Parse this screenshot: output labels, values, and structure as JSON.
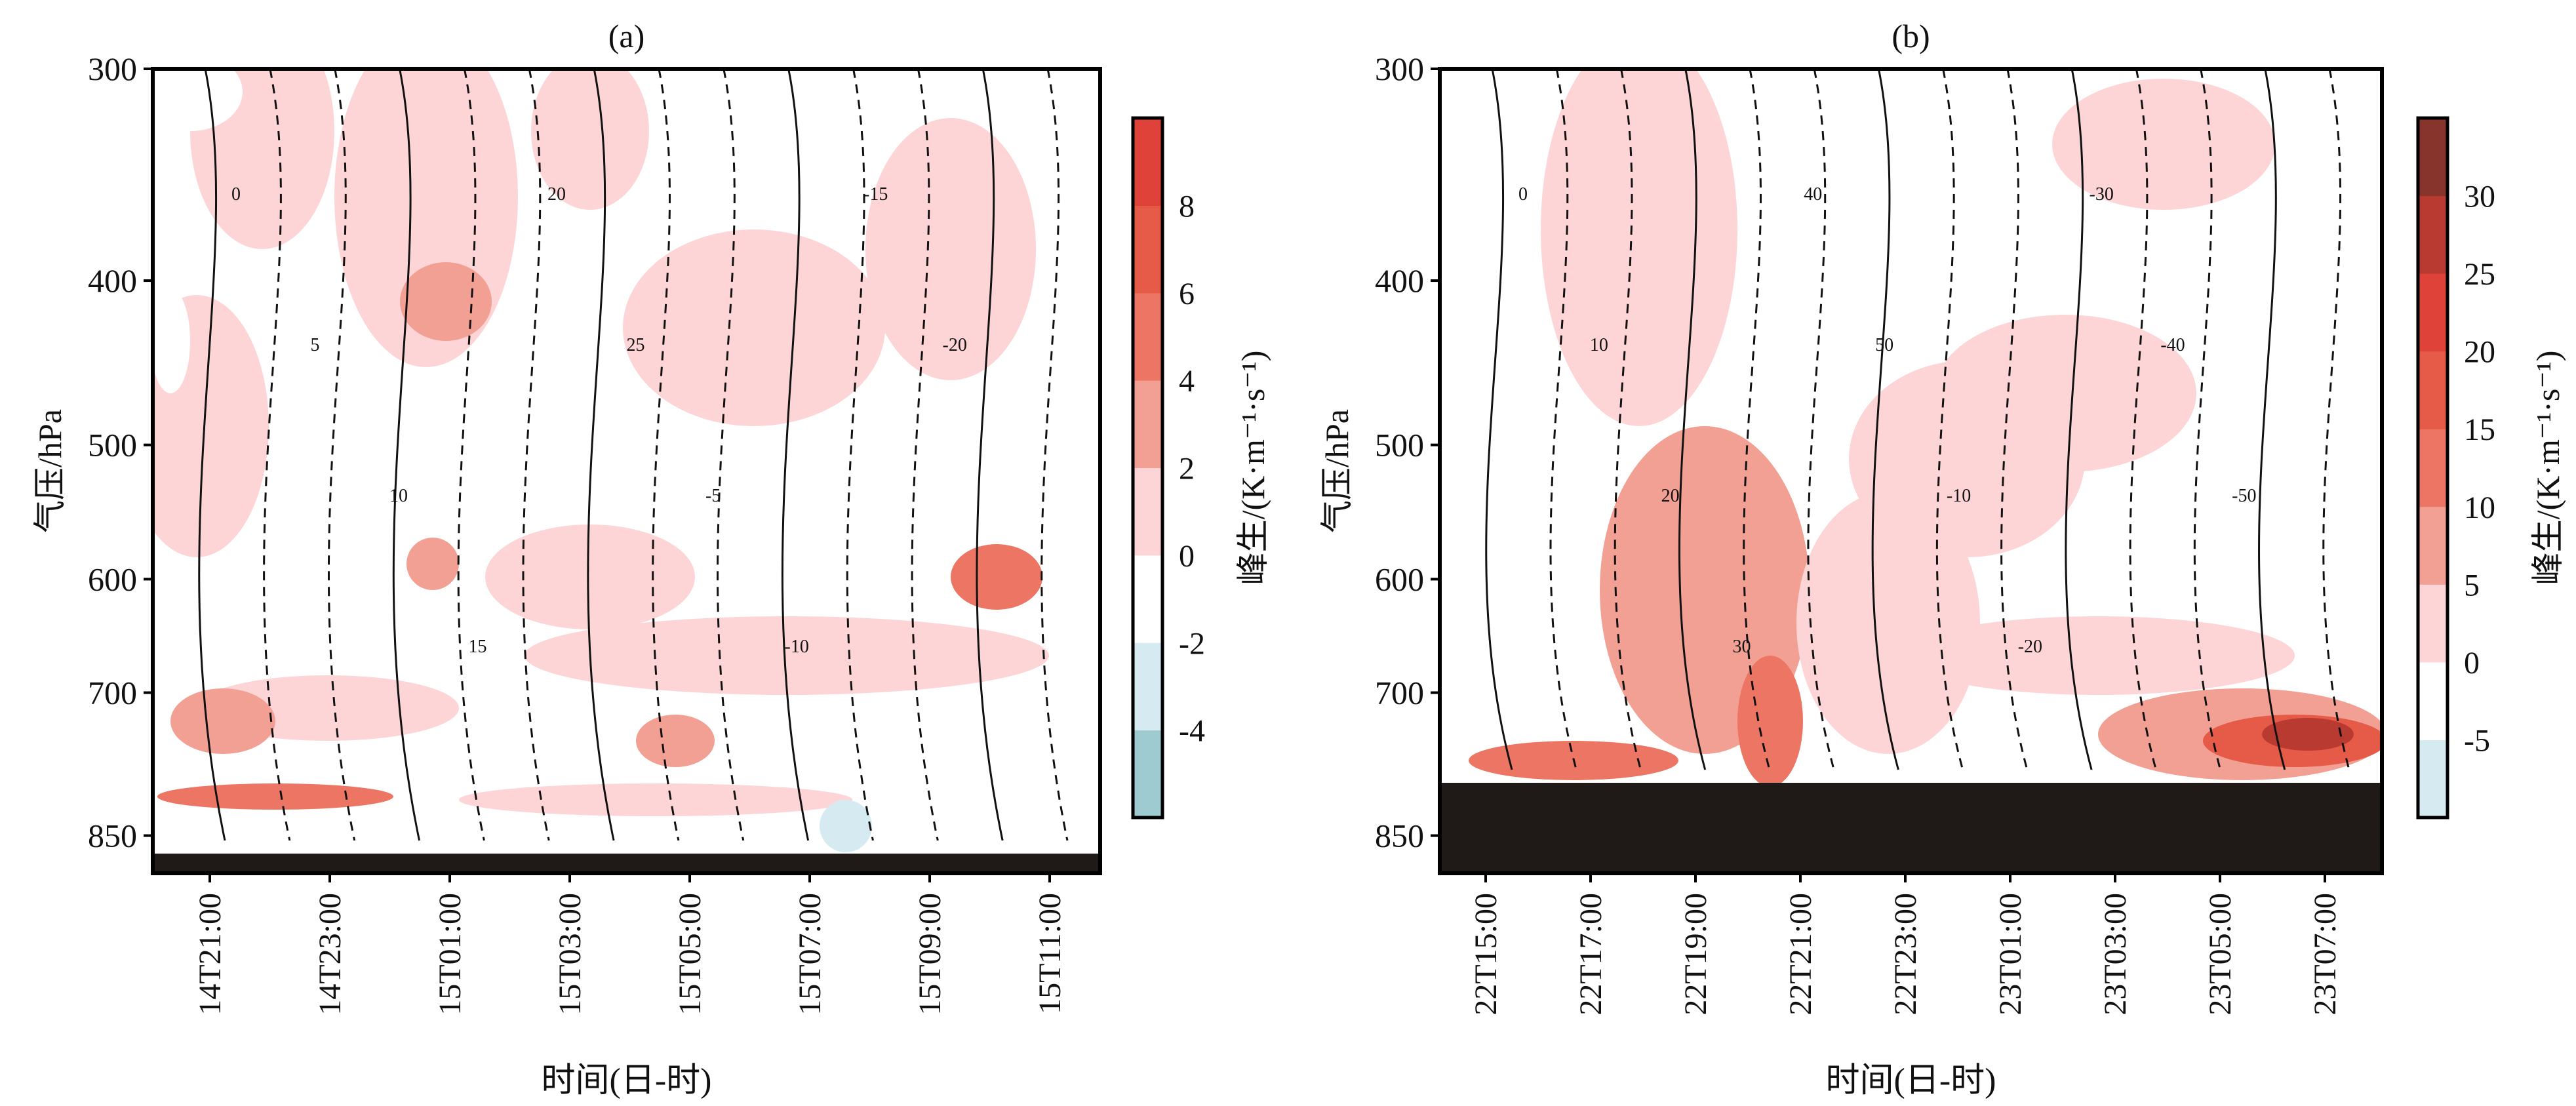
{
  "chart_data": [
    {
      "type": "heatmap",
      "title": "(a)",
      "xlabel": "时间(日-时)",
      "ylabel": "气压/hPa",
      "y_scale": "log",
      "ylim": [
        895,
        300
      ],
      "yticks": [
        300,
        400,
        500,
        600,
        700,
        850
      ],
      "xticks": [
        "14T21:00",
        "14T23:00",
        "15T01:00",
        "15T03:00",
        "15T05:00",
        "15T07:00",
        "15T09:00",
        "15T11:00"
      ],
      "colorbar": {
        "label": "峰生/(K·m⁻¹·s⁻¹)",
        "levels": [
          -6,
          -4,
          -2,
          0,
          2,
          4,
          6,
          8,
          10
        ],
        "ticks": [
          "8",
          "6",
          "4",
          "2",
          "0",
          "-2",
          "-4"
        ],
        "colors": [
          "#9dcbd0",
          "#d5ebf1",
          "#ffffff",
          "#fdd5d7",
          "#f2a093",
          "#ec7563",
          "#e65a48",
          "#de4238"
        ]
      },
      "contour_labels": [
        "0",
        "5",
        "10",
        "15",
        "20",
        "25",
        "-5",
        "-10",
        "-15",
        "-20"
      ]
    },
    {
      "type": "heatmap",
      "title": "(b)",
      "xlabel": "时间(日-时)",
      "ylabel": "气压/hPa",
      "y_scale": "log",
      "ylim": [
        895,
        300
      ],
      "yticks": [
        300,
        400,
        500,
        600,
        700,
        850
      ],
      "xticks": [
        "22T15:00",
        "22T17:00",
        "22T19:00",
        "22T21:00",
        "22T23:00",
        "23T01:00",
        "23T03:00",
        "23T05:00",
        "23T07:00"
      ],
      "colorbar": {
        "label": "峰生/(K·m⁻¹·s⁻¹)",
        "levels": [
          -10,
          -5,
          0,
          5,
          10,
          15,
          20,
          25,
          30,
          35
        ],
        "ticks": [
          "30",
          "25",
          "20",
          "15",
          "10",
          "5",
          "0",
          "-5"
        ],
        "colors": [
          "#d5ebf1",
          "#ffffff",
          "#fdd5d7",
          "#f2a093",
          "#ec7563",
          "#e65a48",
          "#de4238",
          "#b93a30",
          "#86342c"
        ]
      },
      "contour_labels": [
        "0",
        "10",
        "20",
        "30",
        "40",
        "50",
        "-10",
        "-20",
        "-30",
        "-40",
        "-50"
      ]
    }
  ]
}
